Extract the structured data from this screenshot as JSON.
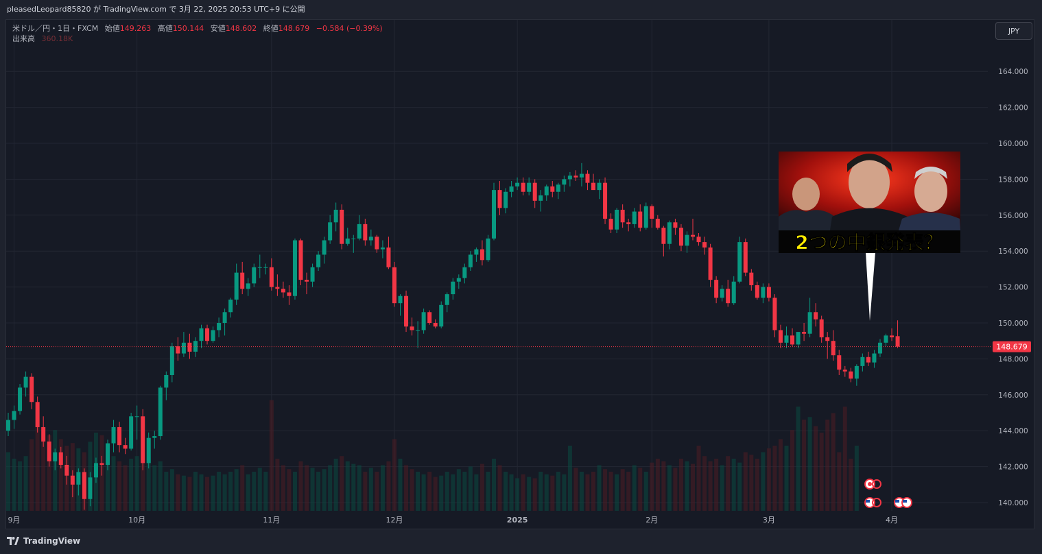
{
  "header": {
    "publish_text": "pleasedLeopard85820 が TradingView.com で 3月 22, 2025 20:53 UTC+9 に公開"
  },
  "legend": {
    "symbol": "米ドル／円・1日・FXCM",
    "open_label": "始値",
    "open": "149.263",
    "high_label": "高値",
    "high": "150.144",
    "low_label": "安値",
    "low": "148.602",
    "close_label": "終値",
    "close": "148.679",
    "change": "−0.584 (−0.39%)",
    "volume_label": "出来高",
    "volume": "360.18K"
  },
  "currency_button": "JPY",
  "price_tag": "148.679",
  "thumbnail_caption": "2つの中銀発表？",
  "footer_brand": "TradingView",
  "colors": {
    "up": "#089981",
    "down": "#f23645",
    "background": "#161a25",
    "grid": "#232733",
    "caption": "#ffeb00"
  },
  "chart_data": {
    "type": "candlestick",
    "title": "米ドル／円・1日・FXCM",
    "ylim": [
      139.5,
      166.0
    ],
    "y_ticks": [
      "164.000",
      "162.000",
      "160.000",
      "158.000",
      "156.000",
      "154.000",
      "152.000",
      "150.000",
      "148.000",
      "146.000",
      "144.000",
      "142.000",
      "140.000"
    ],
    "x_ticks": [
      {
        "label": "9月",
        "bar": 1
      },
      {
        "label": "10月",
        "bar": 22
      },
      {
        "label": "11月",
        "bar": 45
      },
      {
        "label": "12月",
        "bar": 66
      },
      {
        "label": "2025",
        "bar": 87
      },
      {
        "label": "2月",
        "bar": 110
      },
      {
        "label": "3月",
        "bar": 130
      },
      {
        "label": "4月",
        "bar": 151
      }
    ],
    "last_price": 148.679,
    "ohlc": [
      [
        144.0,
        145.0,
        143.7,
        144.6
      ],
      [
        144.6,
        145.4,
        144.1,
        145.1
      ],
      [
        145.1,
        146.6,
        144.9,
        146.4
      ],
      [
        146.4,
        147.3,
        145.9,
        147.0
      ],
      [
        147.0,
        147.2,
        145.2,
        145.6
      ],
      [
        145.6,
        145.9,
        143.9,
        144.2
      ],
      [
        144.2,
        144.8,
        143.1,
        143.4
      ],
      [
        143.4,
        143.8,
        142.0,
        142.3
      ],
      [
        142.3,
        143.0,
        141.8,
        142.8
      ],
      [
        142.8,
        143.1,
        141.9,
        142.1
      ],
      [
        142.1,
        142.6,
        141.0,
        141.5
      ],
      [
        141.5,
        141.8,
        140.3,
        141.0
      ],
      [
        141.0,
        141.9,
        140.4,
        141.7
      ],
      [
        141.7,
        141.9,
        139.6,
        140.2
      ],
      [
        140.2,
        141.7,
        139.8,
        141.4
      ],
      [
        141.4,
        142.5,
        141.1,
        142.2
      ],
      [
        142.2,
        142.6,
        141.5,
        142.1
      ],
      [
        142.1,
        143.5,
        141.8,
        143.3
      ],
      [
        143.3,
        144.6,
        142.8,
        144.2
      ],
      [
        144.2,
        144.5,
        142.8,
        143.2
      ],
      [
        143.2,
        143.6,
        142.7,
        143.0
      ],
      [
        143.0,
        145.0,
        142.9,
        144.8
      ],
      [
        144.8,
        145.4,
        143.5,
        144.8
      ],
      [
        144.8,
        145.2,
        141.8,
        142.2
      ],
      [
        142.2,
        143.9,
        141.9,
        143.6
      ],
      [
        143.6,
        144.0,
        143.0,
        143.7
      ],
      [
        143.7,
        146.5,
        143.5,
        146.4
      ],
      [
        146.4,
        147.3,
        145.7,
        147.1
      ],
      [
        147.1,
        148.9,
        146.7,
        148.7
      ],
      [
        148.7,
        149.2,
        147.9,
        148.3
      ],
      [
        148.3,
        149.5,
        148.1,
        148.9
      ],
      [
        148.9,
        149.4,
        148.0,
        148.4
      ],
      [
        148.4,
        149.2,
        148.1,
        149.0
      ],
      [
        149.0,
        149.9,
        148.6,
        149.7
      ],
      [
        149.7,
        149.9,
        148.8,
        149.0
      ],
      [
        149.0,
        149.8,
        148.9,
        149.6
      ],
      [
        149.6,
        150.3,
        149.2,
        150.0
      ],
      [
        150.0,
        150.8,
        149.3,
        150.6
      ],
      [
        150.6,
        151.4,
        150.3,
        151.3
      ],
      [
        151.3,
        153.3,
        151.0,
        152.8
      ],
      [
        152.8,
        153.4,
        151.6,
        151.9
      ],
      [
        151.9,
        152.5,
        151.5,
        152.2
      ],
      [
        152.2,
        153.3,
        152.0,
        153.1
      ],
      [
        153.1,
        153.8,
        152.5,
        153.1
      ],
      [
        153.1,
        153.3,
        152.7,
        153.1
      ],
      [
        153.1,
        153.6,
        151.8,
        152.0
      ],
      [
        152.0,
        152.7,
        151.5,
        151.9
      ],
      [
        151.9,
        152.3,
        151.4,
        151.7
      ],
      [
        151.7,
        152.1,
        151.0,
        151.5
      ],
      [
        151.5,
        154.7,
        151.3,
        154.6
      ],
      [
        154.6,
        154.7,
        152.1,
        152.4
      ],
      [
        152.4,
        152.8,
        151.6,
        152.3
      ],
      [
        152.3,
        153.3,
        152.0,
        153.1
      ],
      [
        153.1,
        154.0,
        152.9,
        153.8
      ],
      [
        153.8,
        154.8,
        153.3,
        154.6
      ],
      [
        154.6,
        156.0,
        154.4,
        155.6
      ],
      [
        155.6,
        156.7,
        155.1,
        156.3
      ],
      [
        156.3,
        156.6,
        154.1,
        154.4
      ],
      [
        154.4,
        155.3,
        154.3,
        154.7
      ],
      [
        154.7,
        154.9,
        153.9,
        154.7
      ],
      [
        154.7,
        156.0,
        154.6,
        155.5
      ],
      [
        155.5,
        155.8,
        154.3,
        154.6
      ],
      [
        154.6,
        155.2,
        154.3,
        154.8
      ],
      [
        154.8,
        154.9,
        153.9,
        154.1
      ],
      [
        154.1,
        154.6,
        153.6,
        154.2
      ],
      [
        154.2,
        154.8,
        153.0,
        153.1
      ],
      [
        153.1,
        153.4,
        150.9,
        151.1
      ],
      [
        151.1,
        151.6,
        150.4,
        151.5
      ],
      [
        151.5,
        151.8,
        149.5,
        149.8
      ],
      [
        149.8,
        150.3,
        149.3,
        149.6
      ],
      [
        149.6,
        150.1,
        148.6,
        149.6
      ],
      [
        149.6,
        150.8,
        149.4,
        150.6
      ],
      [
        150.6,
        150.7,
        149.9,
        150.0
      ],
      [
        150.0,
        150.2,
        149.7,
        149.8
      ],
      [
        149.8,
        151.2,
        149.7,
        151.0
      ],
      [
        151.0,
        151.7,
        150.6,
        151.6
      ],
      [
        151.6,
        152.5,
        151.3,
        152.3
      ],
      [
        152.3,
        152.7,
        151.9,
        152.5
      ],
      [
        152.5,
        153.3,
        152.2,
        153.1
      ],
      [
        153.1,
        154.0,
        152.9,
        153.8
      ],
      [
        153.8,
        154.2,
        153.4,
        154.1
      ],
      [
        154.1,
        154.6,
        153.2,
        153.5
      ],
      [
        153.5,
        154.9,
        153.4,
        154.7
      ],
      [
        154.7,
        157.8,
        154.6,
        157.4
      ],
      [
        157.4,
        157.9,
        156.0,
        156.4
      ],
      [
        156.4,
        157.5,
        156.1,
        157.3
      ],
      [
        157.3,
        157.9,
        157.0,
        157.6
      ],
      [
        157.6,
        158.1,
        157.4,
        157.8
      ],
      [
        157.8,
        158.1,
        157.1,
        157.3
      ],
      [
        157.3,
        158.1,
        157.1,
        157.8
      ],
      [
        157.8,
        158.0,
        156.4,
        156.8
      ],
      [
        156.8,
        157.4,
        156.2,
        157.1
      ],
      [
        157.1,
        157.7,
        156.8,
        157.6
      ],
      [
        157.6,
        157.9,
        157.0,
        157.3
      ],
      [
        157.3,
        157.8,
        156.9,
        157.7
      ],
      [
        157.7,
        158.2,
        157.3,
        158.0
      ],
      [
        158.0,
        158.4,
        157.6,
        158.2
      ],
      [
        158.2,
        158.5,
        157.9,
        158.1
      ],
      [
        158.1,
        158.9,
        157.6,
        158.3
      ],
      [
        158.3,
        158.5,
        157.4,
        157.8
      ],
      [
        157.8,
        158.3,
        157.5,
        157.4
      ],
      [
        157.4,
        158.0,
        156.9,
        157.8
      ],
      [
        157.8,
        158.1,
        155.5,
        155.8
      ],
      [
        155.8,
        156.1,
        155.0,
        155.2
      ],
      [
        155.2,
        156.4,
        155.0,
        156.3
      ],
      [
        156.3,
        156.6,
        155.3,
        155.6
      ],
      [
        155.6,
        155.8,
        155.1,
        155.5
      ],
      [
        155.5,
        156.4,
        155.3,
        156.2
      ],
      [
        156.2,
        156.6,
        155.1,
        155.3
      ],
      [
        155.3,
        156.7,
        155.2,
        156.5
      ],
      [
        156.5,
        156.6,
        155.3,
        155.8
      ],
      [
        155.8,
        156.0,
        155.2,
        155.3
      ],
      [
        155.3,
        155.4,
        153.7,
        154.4
      ],
      [
        154.4,
        155.7,
        154.1,
        155.6
      ],
      [
        155.6,
        155.8,
        154.9,
        155.3
      ],
      [
        155.3,
        155.5,
        154.0,
        154.3
      ],
      [
        154.3,
        155.1,
        153.9,
        154.9
      ],
      [
        154.9,
        155.8,
        154.6,
        154.8
      ],
      [
        154.8,
        155.0,
        154.3,
        154.5
      ],
      [
        154.5,
        154.8,
        153.8,
        154.2
      ],
      [
        154.2,
        154.4,
        152.0,
        152.4
      ],
      [
        152.4,
        152.6,
        151.1,
        151.4
      ],
      [
        151.4,
        152.1,
        151.2,
        151.9
      ],
      [
        151.9,
        152.4,
        150.9,
        151.1
      ],
      [
        151.1,
        152.6,
        151.0,
        152.3
      ],
      [
        152.3,
        154.8,
        152.2,
        154.5
      ],
      [
        154.5,
        154.7,
        152.6,
        152.8
      ],
      [
        152.8,
        153.0,
        151.8,
        152.1
      ],
      [
        152.1,
        152.3,
        151.3,
        151.4
      ],
      [
        151.4,
        152.2,
        151.1,
        152.0
      ],
      [
        152.0,
        152.2,
        151.2,
        151.4
      ],
      [
        151.4,
        151.6,
        149.2,
        149.6
      ],
      [
        149.6,
        149.9,
        148.6,
        148.9
      ],
      [
        148.9,
        149.8,
        148.6,
        149.3
      ],
      [
        149.3,
        149.7,
        148.7,
        148.8
      ],
      [
        148.8,
        149.3,
        148.6,
        149.5
      ],
      [
        149.5,
        150.0,
        149.0,
        149.4
      ],
      [
        149.4,
        151.4,
        149.2,
        150.6
      ],
      [
        150.6,
        151.1,
        149.8,
        150.2
      ],
      [
        150.2,
        150.4,
        148.9,
        149.2
      ],
      [
        149.2,
        149.5,
        148.0,
        149.0
      ],
      [
        149.0,
        149.6,
        147.9,
        148.2
      ],
      [
        148.2,
        148.5,
        147.1,
        147.4
      ],
      [
        147.4,
        147.6,
        147.0,
        147.3
      ],
      [
        147.3,
        147.5,
        146.7,
        146.9
      ],
      [
        146.9,
        147.7,
        146.5,
        147.6
      ],
      [
        147.6,
        148.3,
        147.3,
        148.1
      ],
      [
        148.1,
        148.4,
        147.6,
        147.8
      ],
      [
        147.8,
        148.5,
        147.5,
        148.3
      ],
      [
        148.3,
        149.1,
        148.1,
        148.9
      ],
      [
        148.9,
        149.4,
        148.7,
        149.3
      ],
      [
        149.3,
        149.7,
        149.0,
        149.2
      ],
      [
        149.263,
        150.144,
        148.602,
        148.679
      ]
    ],
    "volume": [
      0.45,
      0.4,
      0.38,
      0.42,
      0.55,
      0.7,
      0.6,
      0.58,
      0.62,
      0.55,
      0.5,
      0.52,
      0.48,
      0.45,
      0.53,
      0.6,
      0.58,
      0.4,
      0.42,
      0.38,
      0.35,
      0.4,
      0.42,
      0.45,
      0.4,
      0.35,
      0.38,
      0.3,
      0.32,
      0.28,
      0.27,
      0.26,
      0.3,
      0.28,
      0.26,
      0.27,
      0.3,
      0.28,
      0.3,
      0.32,
      0.35,
      0.28,
      0.3,
      0.33,
      0.3,
      0.85,
      0.4,
      0.35,
      0.32,
      0.3,
      0.38,
      0.35,
      0.33,
      0.3,
      0.32,
      0.35,
      0.4,
      0.42,
      0.38,
      0.36,
      0.35,
      0.3,
      0.33,
      0.3,
      0.35,
      0.38,
      0.55,
      0.4,
      0.35,
      0.32,
      0.3,
      0.28,
      0.3,
      0.26,
      0.27,
      0.3,
      0.28,
      0.32,
      0.3,
      0.34,
      0.28,
      0.36,
      0.3,
      0.4,
      0.35,
      0.3,
      0.28,
      0.25,
      0.28,
      0.26,
      0.25,
      0.3,
      0.28,
      0.27,
      0.3,
      0.28,
      0.5,
      0.33,
      0.3,
      0.28,
      0.3,
      0.35,
      0.32,
      0.3,
      0.28,
      0.32,
      0.3,
      0.35,
      0.33,
      0.3,
      0.37,
      0.4,
      0.38,
      0.35,
      0.33,
      0.4,
      0.38,
      0.36,
      0.5,
      0.42,
      0.38,
      0.4,
      0.35,
      0.42,
      0.4,
      0.37,
      0.45,
      0.43,
      0.4,
      0.45,
      0.48,
      0.5,
      0.55,
      0.5,
      0.62,
      0.8,
      0.7,
      0.72,
      0.65,
      0.6,
      0.7,
      0.75,
      0.45,
      0.8,
      0.4,
      0.5
    ]
  }
}
